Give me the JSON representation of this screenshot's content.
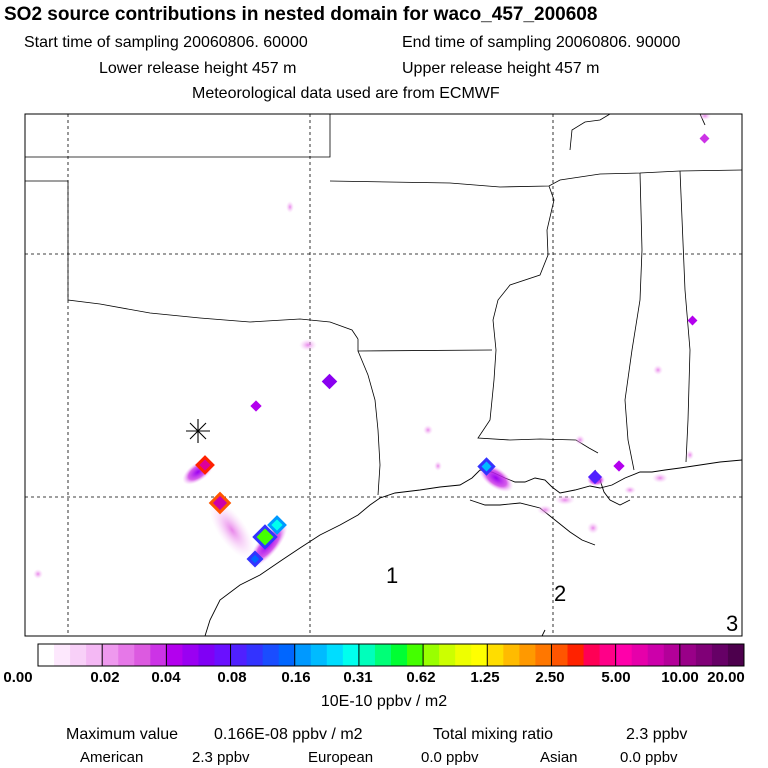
{
  "header": {
    "title": "SO2 source contributions in nested domain for waco_457_200608",
    "start_time": "Start time of sampling 20060806. 60000",
    "end_time": "End time of sampling 20060806. 90000",
    "lower_release": "Lower release height  457 m",
    "upper_release": "Upper release height  457 m",
    "met_data": "Meteorological data used are from ECMWF"
  },
  "map": {
    "region_labels": [
      "1",
      "2",
      "3"
    ],
    "source_marker": "source-asterisk",
    "colors": {
      "border": "#000000",
      "grid": "#000000"
    }
  },
  "colorbar": {
    "ticks": [
      "0.00",
      "0.02",
      "0.04",
      "0.08",
      "0.16",
      "0.31",
      "0.62",
      "1.25",
      "2.50",
      "5.00",
      "10.00",
      "20.00"
    ],
    "units": "10E-10 ppbv / m2",
    "colors": [
      "#ffffff",
      "#fde8fd",
      "#f8d0f8",
      "#f4b8f4",
      "#ee99ee",
      "#e678e8",
      "#dc5ae0",
      "#cc33e6",
      "#b300ee",
      "#9a00f2",
      "#8000f5",
      "#6a10ff",
      "#5020ff",
      "#3333ff",
      "#1a4dff",
      "#0066ff",
      "#0099ff",
      "#00bbff",
      "#00ddff",
      "#00ffee",
      "#00ffbb",
      "#00ff77",
      "#00ff33",
      "#44ff00",
      "#99ff00",
      "#ccff00",
      "#eeff00",
      "#ffff00",
      "#ffdd00",
      "#ffbb00",
      "#ff9900",
      "#ff7700",
      "#ff5500",
      "#ff2200",
      "#ff0055",
      "#ff0088",
      "#ff00aa",
      "#e600aa",
      "#cc00aa",
      "#b30099",
      "#990088",
      "#800077",
      "#660066",
      "#4d004d"
    ]
  },
  "footer": {
    "max_label": "Maximum value",
    "max_value": "0.166E-08 ppbv / m2",
    "total_label": "Total mixing ratio",
    "total_value": "2.3 ppbv",
    "american_label": "American",
    "american_value": "2.3 ppbv",
    "european_label": "European",
    "european_value": "0.0 ppbv",
    "asian_label": "Asian",
    "asian_value": "0.0 ppbv"
  }
}
